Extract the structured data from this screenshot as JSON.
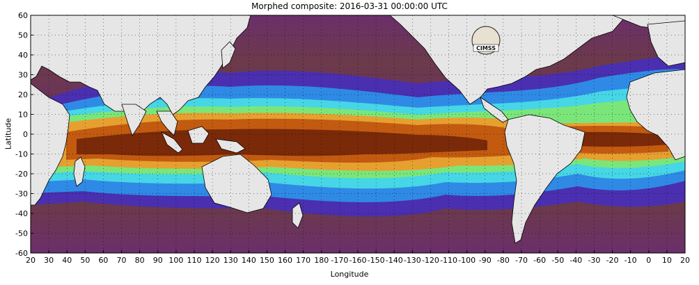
{
  "title": "Morphed composite: 2016-03-31 00:00:00 UTC",
  "axes": {
    "ylabel": "Latitude",
    "xlabel": "Longitude",
    "lat_ticks": [
      "60",
      "50",
      "40",
      "30",
      "20",
      "10",
      "0",
      "-10",
      "-20",
      "-30",
      "-40",
      "-50",
      "-60"
    ],
    "lon_ticks": [
      "20",
      "30",
      "40",
      "50",
      "60",
      "70",
      "80",
      "90",
      "100",
      "110",
      "120",
      "130",
      "140",
      "150",
      "160",
      "170",
      "180",
      "-170",
      "-160",
      "-150",
      "-140",
      "-130",
      "-120",
      "-110",
      "-100",
      "-90",
      "-80",
      "-70",
      "-60",
      "-50",
      "-40",
      "-30",
      "-20",
      "-10",
      "0",
      "10",
      "20"
    ]
  },
  "logo": {
    "text": "CIMSS"
  },
  "colors": {
    "land": "#e6e6e6",
    "dry": "#6b2f6b",
    "very_dry": "#7a3a2e",
    "low": "#4a2fb0",
    "mid_low": "#2f8ae6",
    "mid": "#46d6e6",
    "mid_high": "#7ae67a",
    "high": "#e6a030",
    "very_high": "#c25a10",
    "max": "#7a2a08"
  }
}
